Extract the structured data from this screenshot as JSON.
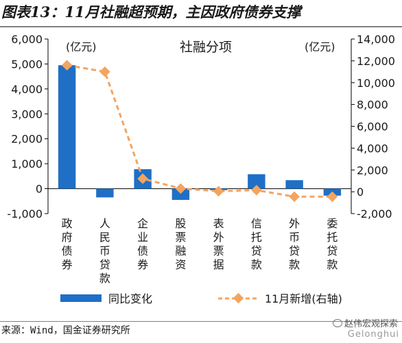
{
  "figure": {
    "title": "图表13：11月社融超预期，主因政府债券支撑",
    "source": "来源：Wind，国金证券研究所",
    "watermark": "赵伟宏观探索",
    "watermark_sub": "Gelonghui"
  },
  "chart_data": {
    "type": "bar+line",
    "title": "社融分项",
    "left_unit": "(亿元)",
    "right_unit": "(亿元)",
    "categories": [
      "政府债券",
      "人民币贷款",
      "企业债券",
      "股票融资",
      "表外票据",
      "信托贷款",
      "外币贷款",
      "委托贷款"
    ],
    "left_axis": {
      "min": -1000,
      "max": 6000,
      "ticks": [
        "-1,000",
        "0",
        "1,000",
        "2,000",
        "3,000",
        "4,000",
        "5,000",
        "6,000"
      ]
    },
    "right_axis": {
      "min": -2000,
      "max": 14000,
      "ticks": [
        "-2,000",
        "0",
        "2,000",
        "4,000",
        "6,000",
        "8,000",
        "10,000",
        "12,000",
        "14,000"
      ]
    },
    "series": [
      {
        "name": "同比变化",
        "kind": "bar",
        "axis": "left",
        "color": "#1f6fc6",
        "values": [
          4950,
          -350,
          780,
          -450,
          -60,
          580,
          340,
          -280
        ]
      },
      {
        "name": "11月新增(右轴)",
        "kind": "line",
        "axis": "right",
        "color": "#f4a460",
        "values": [
          11600,
          11000,
          1200,
          300,
          50,
          150,
          -450,
          -450
        ]
      }
    ]
  }
}
